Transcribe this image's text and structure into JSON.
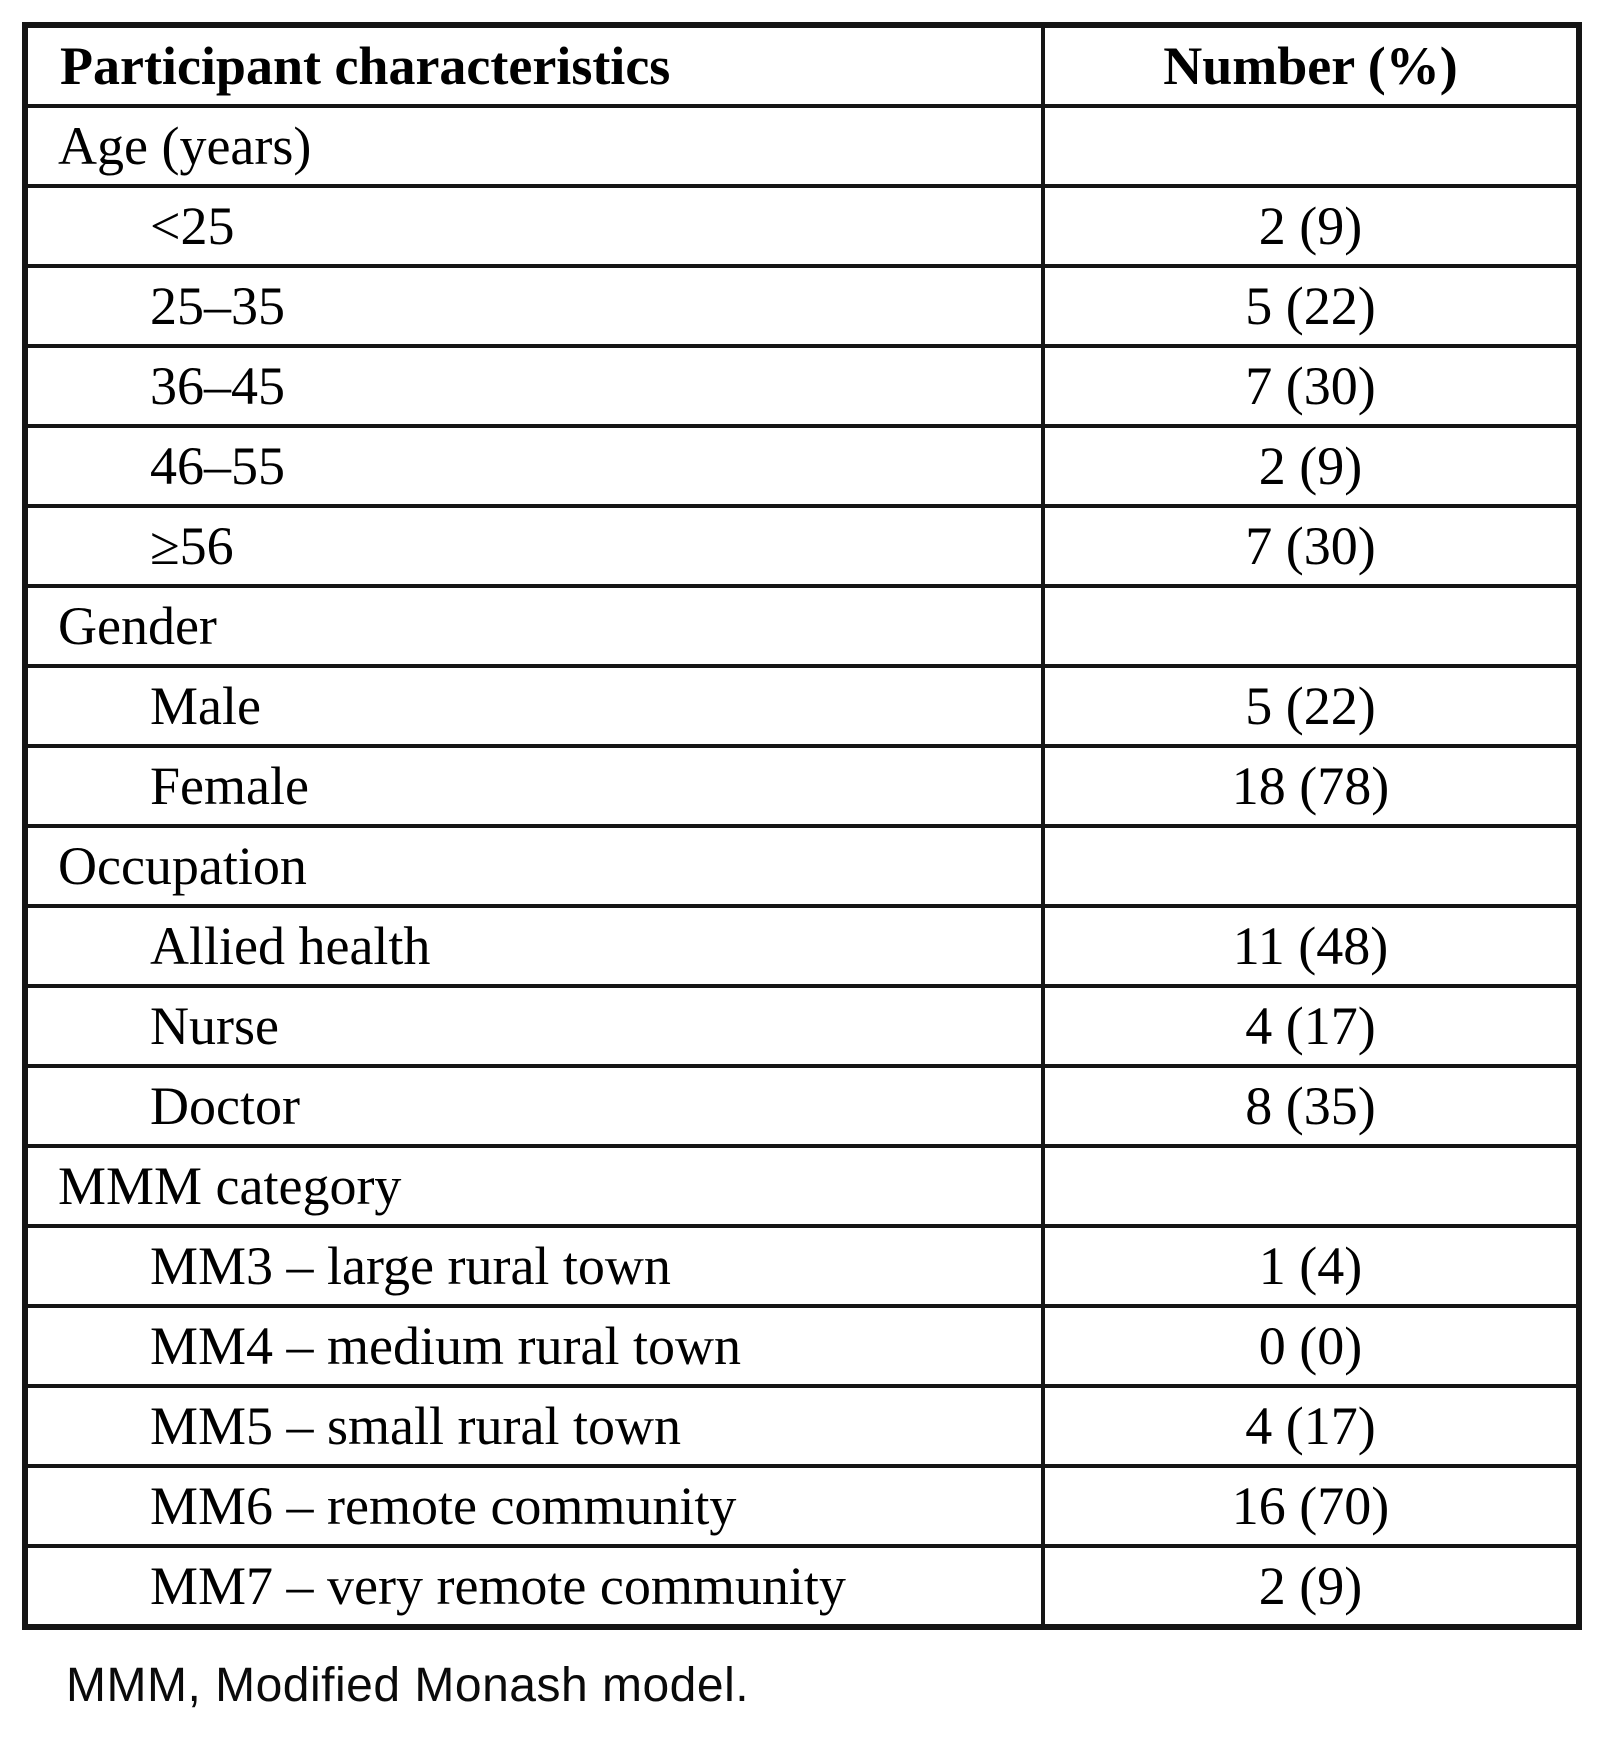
{
  "table": {
    "headers": {
      "characteristics": "Participant characteristics",
      "number": "Number (%)"
    },
    "rows": [
      {
        "label": "Age (years)",
        "value": "",
        "type": "section"
      },
      {
        "label": "<25",
        "value": "2 (9)",
        "type": "sub"
      },
      {
        "label": "25–35",
        "value": "5 (22)",
        "type": "sub"
      },
      {
        "label": "36–45",
        "value": "7 (30)",
        "type": "sub"
      },
      {
        "label": "46–55",
        "value": "2 (9)",
        "type": "sub"
      },
      {
        "label": "≥56",
        "value": "7 (30)",
        "type": "sub"
      },
      {
        "label": "Gender",
        "value": "",
        "type": "section"
      },
      {
        "label": "Male",
        "value": "5 (22)",
        "type": "sub"
      },
      {
        "label": "Female",
        "value": "18 (78)",
        "type": "sub"
      },
      {
        "label": "Occupation",
        "value": "",
        "type": "section"
      },
      {
        "label": "Allied health",
        "value": "11 (48)",
        "type": "sub"
      },
      {
        "label": "Nurse",
        "value": "4 (17)",
        "type": "sub"
      },
      {
        "label": "Doctor",
        "value": "8 (35)",
        "type": "sub"
      },
      {
        "label": "MMM category",
        "value": "",
        "type": "section"
      },
      {
        "label": "MM3 – large rural town",
        "value": "1 (4)",
        "type": "sub"
      },
      {
        "label": "MM4 – medium rural town",
        "value": "0 (0)",
        "type": "sub"
      },
      {
        "label": "MM5 – small rural town",
        "value": "4 (17)",
        "type": "sub"
      },
      {
        "label": "MM6 – remote community",
        "value": "16 (70)",
        "type": "sub"
      },
      {
        "label": "MM7 – very remote community",
        "value": "2 (9)",
        "type": "sub"
      }
    ],
    "footnote": "MMM, Modified Monash model."
  },
  "colors": {
    "border": "#151515",
    "text": "#000000",
    "background": "#ffffff"
  }
}
